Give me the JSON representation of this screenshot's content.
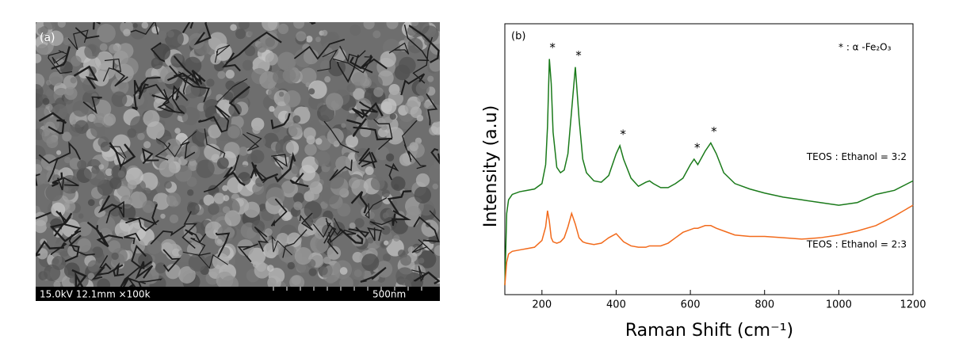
{
  "sem_panel": {
    "label": "(a)",
    "info": "15.0kV 12.1mm ×100k",
    "scale": "500nm"
  },
  "chart_data": {
    "type": "line",
    "panel_label": "(b)",
    "x_label": "Raman Shift (cm⁻¹)",
    "y_label": "Intensity (a.u)",
    "note": "* : α -Fe₂O₃",
    "xlim": [
      100,
      1200
    ],
    "xticks": [
      200,
      400,
      600,
      800,
      1000,
      1200
    ],
    "ylim": [
      0,
      100
    ],
    "x": [
      100,
      105,
      110,
      120,
      140,
      160,
      180,
      200,
      210,
      215,
      220,
      225,
      230,
      240,
      250,
      260,
      270,
      280,
      290,
      300,
      310,
      320,
      340,
      360,
      380,
      400,
      410,
      420,
      440,
      460,
      480,
      490,
      500,
      520,
      540,
      560,
      580,
      600,
      610,
      620,
      640,
      655,
      670,
      690,
      720,
      760,
      800,
      850,
      900,
      950,
      1000,
      1050,
      1100,
      1150,
      1200
    ],
    "series": [
      {
        "name": "TEOS : Ethanol = 3:2",
        "color": "#1a7a1a",
        "values": [
          3.5,
          30,
          35,
          37,
          38,
          38.5,
          39,
          41,
          48,
          62,
          87,
          78,
          60,
          47,
          45,
          46,
          52,
          68,
          84,
          65,
          50,
          45,
          42,
          41.5,
          44,
          52,
          55,
          50,
          43,
          40,
          41.5,
          42,
          41,
          39.5,
          39.5,
          41,
          43,
          48,
          50,
          48,
          53,
          56,
          52,
          45,
          41,
          39,
          37.5,
          36,
          35,
          34,
          33,
          34,
          37,
          38.5,
          42
        ]
      },
      {
        "name": "TEOS : Ethanol = 2:3",
        "color": "#f26a1b",
        "values": [
          3.5,
          12,
          15,
          16,
          16.5,
          17,
          17.5,
          20,
          25,
          31,
          27,
          21,
          19.5,
          19,
          19.5,
          21,
          25,
          30,
          26,
          21,
          19.5,
          19,
          18.5,
          19,
          21,
          22.5,
          21,
          19.5,
          18,
          17.5,
          17.5,
          18,
          18,
          18,
          19,
          21,
          23,
          24,
          24.5,
          24.5,
          25.5,
          25.5,
          24.5,
          23.5,
          22,
          21.5,
          21.5,
          21,
          20.5,
          21,
          22,
          23.5,
          25.5,
          29,
          33
        ]
      }
    ],
    "peak_markers": [
      {
        "text": "*",
        "x": 220
      },
      {
        "text": "*",
        "x": 290
      },
      {
        "text": "*",
        "x": 410
      },
      {
        "text": "*",
        "x": 610
      },
      {
        "text": "*",
        "x": 655
      }
    ]
  }
}
